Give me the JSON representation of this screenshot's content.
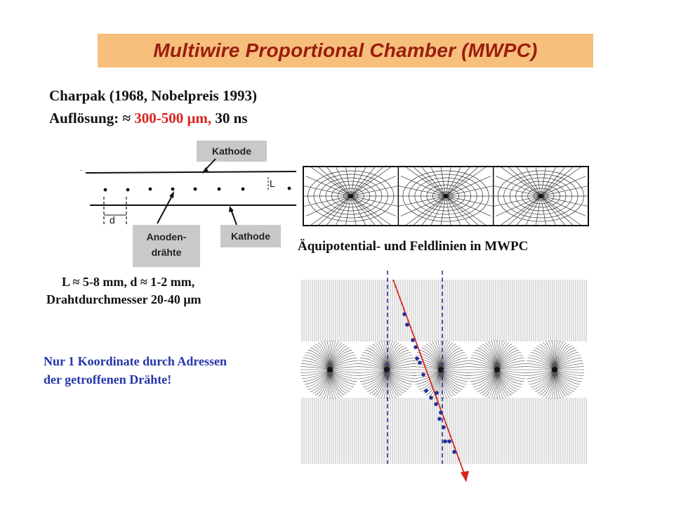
{
  "title": "Multiwire Proportional Chamber (MWPC)",
  "intro": {
    "line1": "Charpak (1968, Nobelpreis 1993)",
    "line2_prefix": "Auflösung: ≈ ",
    "line2_highlight": "300-500 μm,",
    "line2_suffix": " 30 ns",
    "highlight_color": "#d8251b"
  },
  "schematic": {
    "label_kathode_top": "Kathode",
    "label_kathode_bottom": "Kathode",
    "label_anoden_line1": "Anoden-",
    "label_anoden_line2": "drähte",
    "dim_L": "L",
    "dim_d": "d"
  },
  "dimensions": {
    "line1": "L ≈ 5-8 mm, d ≈ 1-2 mm,",
    "line2": "Drahtdurchmesser 20-40 μm"
  },
  "field_caption": "Äquipotential- und Feldlinien in MWPC",
  "note": {
    "line1": "Nur 1 Koordinate durch Adressen",
    "line2": "der getroffenen Drähte!",
    "color": "#2536a8"
  },
  "colors": {
    "title_bg": "#f6bf7c",
    "title_text": "#9b1c10",
    "label_bg": "#c9c9c9",
    "track": "#d8251b",
    "hits": "#1f2f9e"
  }
}
